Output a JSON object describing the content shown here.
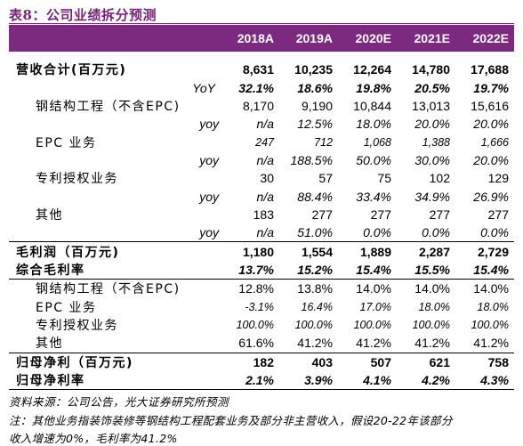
{
  "title": "表8：公司业绩拆分预测",
  "columns": [
    "2018A",
    "2019A",
    "2020E",
    "2021E",
    "2022E"
  ],
  "rows": {
    "revenue": {
      "label": "营收合计(百万元)",
      "values": [
        "8,631",
        "10,235",
        "12,264",
        "14,780",
        "17,688"
      ]
    },
    "revenue_yoy": {
      "label": "YoY",
      "values": [
        "32.1%",
        "18.6%",
        "19.8%",
        "20.5%",
        "19.7%"
      ]
    },
    "steel": {
      "label": "钢结构工程（不含EPC)",
      "values": [
        "8,170",
        "9,190",
        "10,844",
        "13,013",
        "15,616"
      ]
    },
    "steel_yoy": {
      "label": "yoy",
      "values": [
        "n/a",
        "12.5%",
        "18.0%",
        "20.0%",
        "20.0%"
      ]
    },
    "epc": {
      "label": "EPC 业务",
      "values": [
        "247",
        "712",
        "1,068",
        "1,388",
        "1,666"
      ]
    },
    "epc_yoy": {
      "label": "yoy",
      "values": [
        "n/a",
        "188.5%",
        "50.0%",
        "30.0%",
        "20.0%"
      ]
    },
    "patent": {
      "label": "专利授权业务",
      "values": [
        "30",
        "57",
        "75",
        "102",
        "129"
      ]
    },
    "patent_yoy": {
      "label": "yoy",
      "values": [
        "n/a",
        "88.4%",
        "33.4%",
        "34.9%",
        "26.9%"
      ]
    },
    "other": {
      "label": "其他",
      "values": [
        "183",
        "277",
        "277",
        "277",
        "277"
      ]
    },
    "other_yoy": {
      "label": "yoy",
      "values": [
        "n/a",
        "51.0%",
        "0.0%",
        "0.0%",
        "0.0%"
      ]
    },
    "gross_profit": {
      "label": "毛利润（百万元)",
      "values": [
        "1,180",
        "1,554",
        "1,889",
        "2,287",
        "2,729"
      ]
    },
    "gross_margin": {
      "label": "综合毛利率",
      "values": [
        "13.7%",
        "15.2%",
        "15.4%",
        "15.5%",
        "15.4%"
      ]
    },
    "gm_steel": {
      "label": "钢结构工程（不含EPC)",
      "values": [
        "12.8%",
        "13.8%",
        "14.0%",
        "14.0%",
        "14.0%"
      ]
    },
    "gm_epc": {
      "label": "EPC 业务",
      "values": [
        "-3.1%",
        "16.4%",
        "17.0%",
        "18.0%",
        "18.0%"
      ]
    },
    "gm_patent": {
      "label": "专利授权业务",
      "values": [
        "100.0%",
        "100.0%",
        "100.0%",
        "100.0%",
        "100.0%"
      ]
    },
    "gm_other": {
      "label": "其他",
      "values": [
        "61.6%",
        "41.2%",
        "41.2%",
        "41.2%",
        "41.2%"
      ]
    },
    "net_profit": {
      "label": "归母净利（百万元)",
      "values": [
        "182",
        "403",
        "507",
        "621",
        "758"
      ]
    },
    "net_margin": {
      "label": "归母净利率",
      "values": [
        "2.1%",
        "3.9%",
        "4.1%",
        "4.2%",
        "4.3%"
      ]
    }
  },
  "source": "资料来源：公司公告，光大证券研究所预测",
  "note": "注：其他业务指装饰装修等钢结构工程配套业务及部分非主营收入，假设20-22年该部分",
  "note_line2": "收入增速为0%，毛利率为41.2%"
}
